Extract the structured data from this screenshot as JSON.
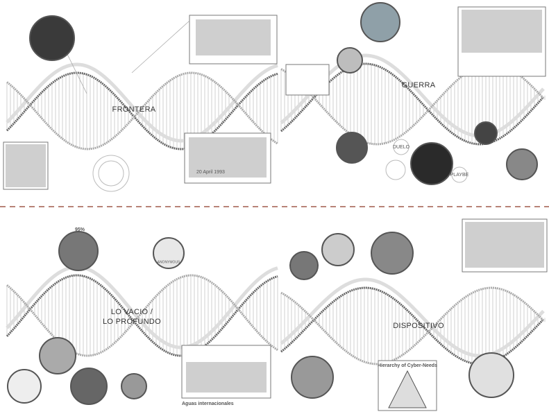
{
  "panels": [
    {
      "title": "FRONTERA",
      "captions": [
        "20 April 1993"
      ]
    },
    {
      "title": "GUERRA",
      "captions": [
        "DUELO",
        "PLAYBE"
      ]
    },
    {
      "title_lines": [
        "LO VACIO /",
        "LO PROFUNDO"
      ],
      "captions": [
        "95%",
        "ANONYMOUS",
        "Aguas internacionales"
      ]
    },
    {
      "title": "DISPOSITIVO",
      "captions": [
        "Hierarchy of Cyber-Needs"
      ]
    }
  ]
}
